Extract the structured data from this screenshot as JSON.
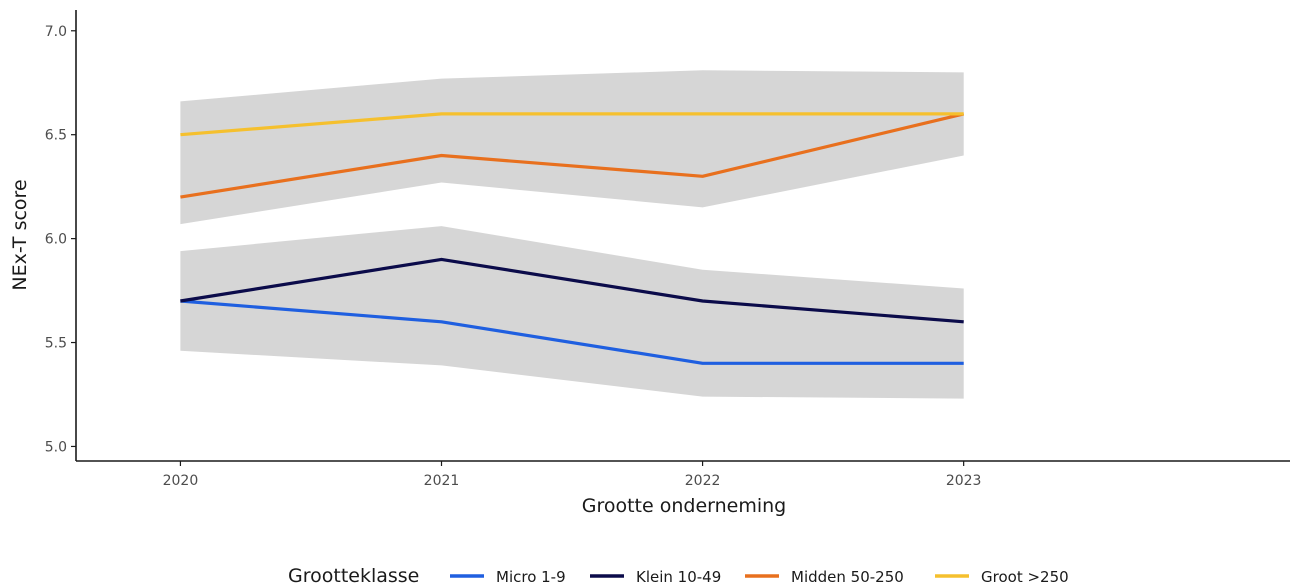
{
  "chart_data": {
    "type": "line",
    "title": "",
    "xlabel": "Grootte onderneming",
    "ylabel": "NEx-T score",
    "x": [
      "2020",
      "2021",
      "2022",
      "2023"
    ],
    "xlim": [
      2019.6,
      2024.25
    ],
    "ylim": [
      4.93,
      7.1
    ],
    "y_ticks": [
      5.0,
      5.5,
      6.0,
      6.5,
      7.0
    ],
    "y_tick_labels": [
      "5.0",
      "5.5",
      "6.0",
      "6.5",
      "7.0"
    ],
    "grid": false,
    "legend_title": "Grootteklasse",
    "legend_position": "bottom",
    "series": [
      {
        "name": "Micro 1-9",
        "color": "#1f5fe0",
        "values": [
          5.7,
          5.6,
          5.4,
          5.4
        ]
      },
      {
        "name": "Klein 10-49",
        "color": "#0b0b4a",
        "values": [
          5.7,
          5.9,
          5.7,
          5.6
        ]
      },
      {
        "name": "Midden 50-250",
        "color": "#e8701e",
        "values": [
          6.2,
          6.4,
          6.3,
          6.6
        ]
      },
      {
        "name": "Groot >250",
        "color": "#f5c02e",
        "values": [
          6.5,
          6.6,
          6.6,
          6.6
        ]
      }
    ],
    "confidence_bands": [
      {
        "group": "Micro 1-9 / Klein 10-49",
        "color": "#d6d6d6",
        "lower": [
          5.46,
          5.39,
          5.24,
          5.23
        ],
        "upper": [
          5.94,
          6.06,
          5.85,
          5.76
        ]
      },
      {
        "group": "Midden 50-250 / Groot >250",
        "color": "#d6d6d6",
        "lower": [
          6.07,
          6.27,
          6.15,
          6.4
        ],
        "upper": [
          6.66,
          6.77,
          6.81,
          6.8
        ]
      }
    ]
  }
}
